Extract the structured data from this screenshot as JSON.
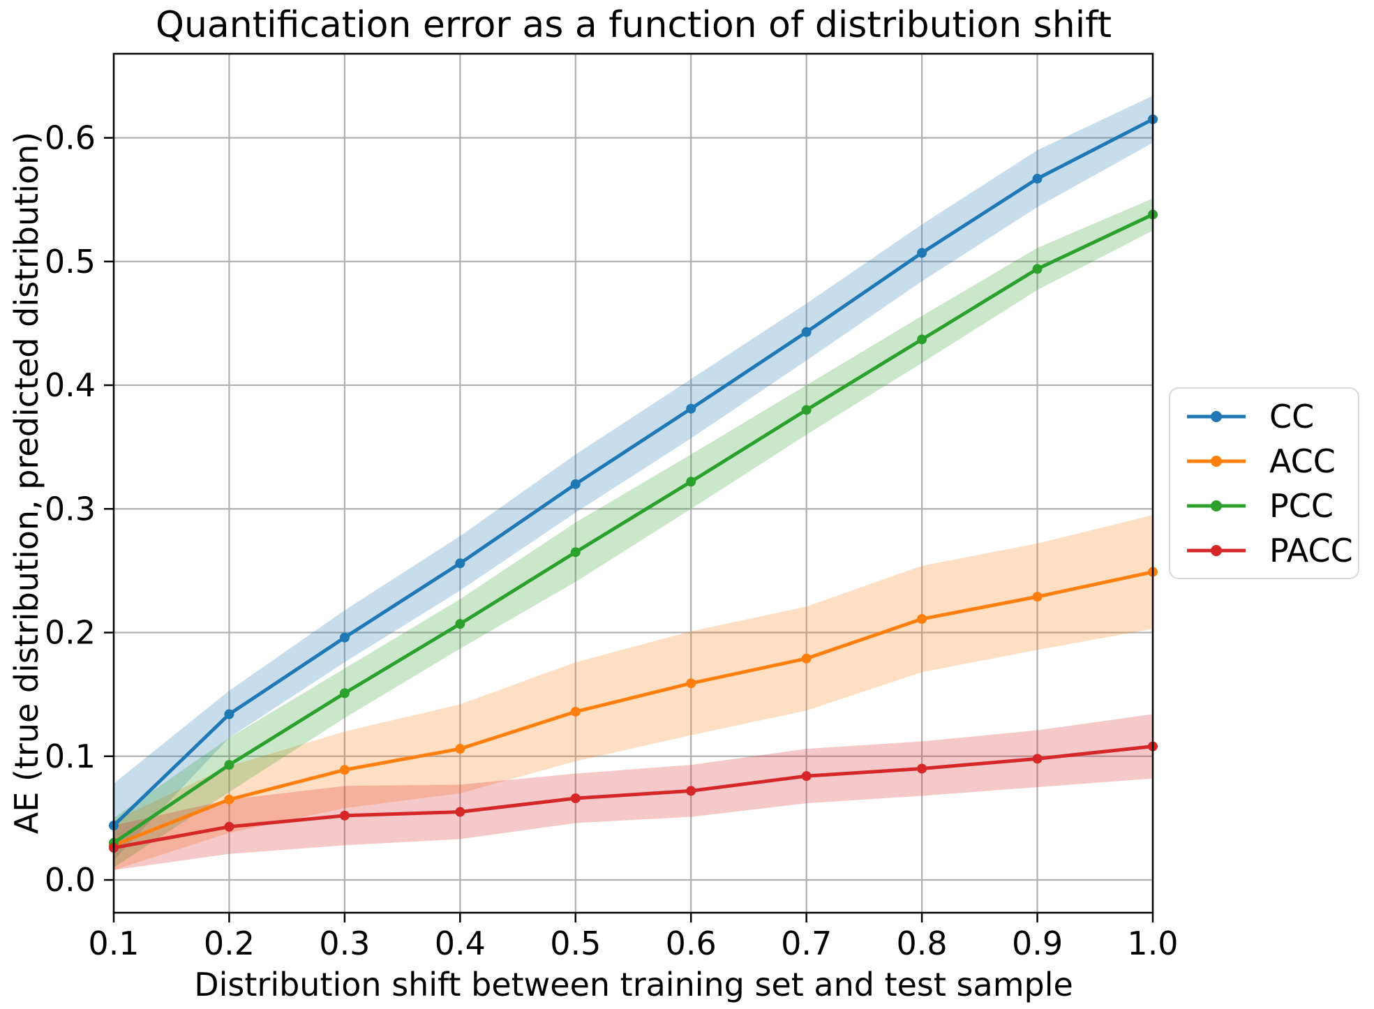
{
  "chart_data": {
    "type": "line",
    "title": "Quantification error as a function of distribution shift",
    "xlabel": "Distribution shift between training set and test sample",
    "ylabel": "AE (true distribution, predicted distribution)",
    "x": [
      0.1,
      0.2,
      0.3,
      0.4,
      0.5,
      0.6,
      0.7,
      0.8,
      0.9,
      1.0
    ],
    "x_tick_labels": [
      "0.1",
      "0.2",
      "0.3",
      "0.4",
      "0.5",
      "0.6",
      "0.7",
      "0.8",
      "0.9",
      "1.0"
    ],
    "y_ticks": [
      0.0,
      0.1,
      0.2,
      0.3,
      0.4,
      0.5,
      0.6
    ],
    "y_tick_labels": [
      "0.0",
      "0.1",
      "0.2",
      "0.3",
      "0.4",
      "0.5",
      "0.6"
    ],
    "xlim": [
      0.1,
      1.0
    ],
    "ylim": [
      -0.0265,
      0.668
    ],
    "grid": true,
    "grid_color": "#b0b0b0",
    "frame_color": "#000000",
    "band_alpha": 0.25,
    "legend_position": "outside-right",
    "series": [
      {
        "name": "CC",
        "color": "#1f77b4",
        "values": [
          0.044,
          0.134,
          0.196,
          0.256,
          0.32,
          0.381,
          0.443,
          0.507,
          0.567,
          0.615
        ],
        "band_lower": [
          0.016,
          0.115,
          0.176,
          0.234,
          0.297,
          0.357,
          0.42,
          0.484,
          0.544,
          0.596
        ],
        "band_upper": [
          0.078,
          0.153,
          0.218,
          0.278,
          0.344,
          0.405,
          0.466,
          0.53,
          0.59,
          0.634
        ]
      },
      {
        "name": "ACC",
        "color": "#ff7f0e",
        "values": [
          0.028,
          0.065,
          0.089,
          0.106,
          0.136,
          0.159,
          0.179,
          0.211,
          0.229,
          0.249
        ],
        "band_lower": [
          0.008,
          0.038,
          0.058,
          0.07,
          0.096,
          0.117,
          0.137,
          0.168,
          0.186,
          0.203
        ],
        "band_upper": [
          0.048,
          0.092,
          0.12,
          0.142,
          0.176,
          0.201,
          0.221,
          0.254,
          0.272,
          0.295
        ]
      },
      {
        "name": "PCC",
        "color": "#2ca02c",
        "values": [
          0.03,
          0.093,
          0.151,
          0.207,
          0.265,
          0.322,
          0.38,
          0.437,
          0.494,
          0.538
        ],
        "band_lower": [
          0.01,
          0.071,
          0.131,
          0.187,
          0.241,
          0.3,
          0.36,
          0.418,
          0.477,
          0.525
        ],
        "band_upper": [
          0.05,
          0.115,
          0.171,
          0.227,
          0.289,
          0.344,
          0.4,
          0.456,
          0.511,
          0.551
        ]
      },
      {
        "name": "PACC",
        "color": "#d62728",
        "values": [
          0.026,
          0.043,
          0.052,
          0.055,
          0.066,
          0.072,
          0.084,
          0.09,
          0.098,
          0.108
        ],
        "band_lower": [
          0.008,
          0.021,
          0.028,
          0.033,
          0.046,
          0.051,
          0.062,
          0.068,
          0.075,
          0.082
        ],
        "band_upper": [
          0.044,
          0.065,
          0.076,
          0.077,
          0.086,
          0.093,
          0.106,
          0.112,
          0.121,
          0.134
        ]
      }
    ]
  }
}
